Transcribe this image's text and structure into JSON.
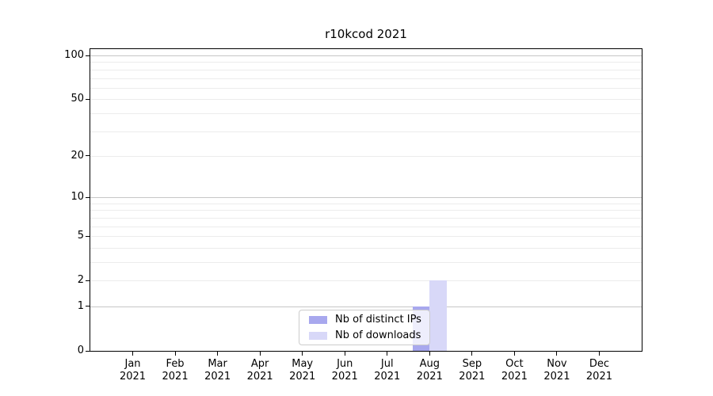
{
  "chart_data": {
    "type": "bar",
    "title": "r10kcod 2021",
    "categories": [
      "Jan 2021",
      "Feb 2021",
      "Mar 2021",
      "Apr 2021",
      "May 2021",
      "Jun 2021",
      "Jul 2021",
      "Aug 2021",
      "Sep 2021",
      "Oct 2021",
      "Nov 2021",
      "Dec 2021"
    ],
    "series": [
      {
        "name": "Nb of distinct IPs",
        "color": "#a8a8ee",
        "values": [
          0,
          0,
          0,
          0,
          0,
          0,
          0,
          1,
          0,
          0,
          0,
          0
        ]
      },
      {
        "name": "Nb of downloads",
        "color": "#d8d8f8",
        "values": [
          0,
          0,
          0,
          0,
          0,
          0,
          0,
          2,
          0,
          0,
          0,
          0
        ]
      }
    ],
    "xlabel": "",
    "ylabel": "",
    "y_scale": "log1p",
    "ylim": [
      0,
      110.6
    ],
    "y_ticks": [
      0,
      1,
      2,
      5,
      10,
      20,
      50,
      100
    ],
    "gridlines": {
      "major": [
        1,
        10,
        100
      ],
      "minor": [
        2,
        3,
        4,
        5,
        6,
        7,
        8,
        9,
        20,
        30,
        40,
        50,
        60,
        70,
        80,
        90
      ]
    },
    "legend_position": "lower center",
    "grid": "on"
  },
  "colors": {
    "major_grid": "#c6c6c6",
    "minor_grid": "#ececec",
    "axis": "#000000",
    "legend_border": "#cccccc",
    "background": "#ffffff"
  }
}
